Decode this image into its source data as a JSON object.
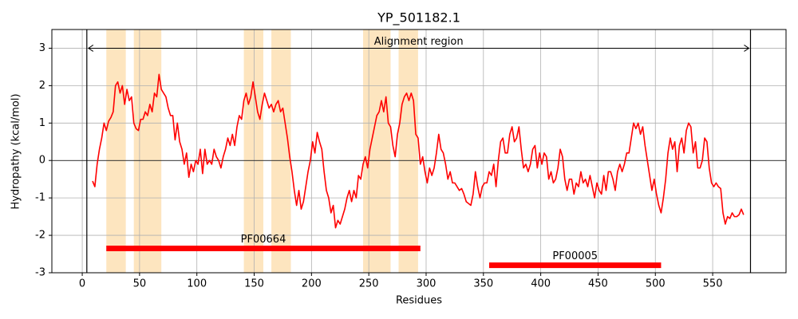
{
  "chart_data": {
    "type": "line",
    "title": "YP_501182.1",
    "x_label": "Residues",
    "y_label": "Hydropathy (kcal/mol)",
    "xlim": [
      -26.5,
      614
    ],
    "ylim": [
      -3,
      3.5
    ],
    "xticks": [
      0,
      50,
      100,
      150,
      200,
      250,
      300,
      350,
      400,
      450,
      500,
      550
    ],
    "yticks": [
      -3,
      -2,
      -1,
      0,
      1,
      2,
      3
    ],
    "grid": true,
    "hline": 0,
    "regions": {
      "color": "#fde5bf",
      "spans": [
        [
          21,
          38
        ],
        [
          45,
          69
        ],
        [
          141,
          158
        ],
        [
          165,
          182
        ],
        [
          245,
          269
        ],
        [
          276,
          293
        ]
      ]
    },
    "alignment": {
      "label": "Alignment region",
      "start": 4,
      "end": 583,
      "y": 3
    },
    "domains": {
      "color": "#ff0000",
      "items": [
        {
          "label": "PF00664",
          "start": 21,
          "end": 295,
          "y": -2.35
        },
        {
          "label": "PF00005",
          "start": 355,
          "end": 505,
          "y": -2.8
        }
      ]
    },
    "series": [
      {
        "color": "#ff0000",
        "x": [
          9,
          11,
          13,
          15,
          17,
          19,
          21,
          23,
          25,
          27,
          29,
          31,
          33,
          35,
          37,
          39,
          41,
          43,
          45,
          47,
          49,
          51,
          53,
          55,
          57,
          59,
          61,
          63,
          65,
          67,
          69,
          71,
          73,
          75,
          77,
          79,
          81,
          83,
          85,
          87,
          89,
          91,
          93,
          95,
          97,
          99,
          101,
          103,
          105,
          107,
          109,
          111,
          113,
          115,
          117,
          119,
          121,
          123,
          125,
          127,
          129,
          131,
          133,
          135,
          137,
          139,
          141,
          143,
          145,
          147,
          149,
          151,
          153,
          155,
          157,
          159,
          161,
          163,
          165,
          167,
          169,
          171,
          173,
          175,
          177,
          179,
          181,
          183,
          185,
          187,
          189,
          191,
          193,
          195,
          197,
          199,
          201,
          203,
          205,
          207,
          209,
          211,
          213,
          215,
          217,
          219,
          221,
          223,
          225,
          227,
          229,
          231,
          233,
          235,
          237,
          239,
          241,
          243,
          245,
          247,
          249,
          251,
          253,
          255,
          257,
          259,
          261,
          263,
          265,
          267,
          269,
          271,
          273,
          275,
          277,
          279,
          281,
          283,
          285,
          287,
          289,
          291,
          293,
          295,
          297,
          299,
          301,
          303,
          305,
          307,
          309,
          311,
          313,
          315,
          317,
          319,
          321,
          323,
          325,
          327,
          329,
          331,
          333,
          335,
          337,
          339,
          341,
          343,
          345,
          347,
          349,
          351,
          353,
          355,
          357,
          359,
          361,
          363,
          365,
          367,
          369,
          371,
          373,
          375,
          377,
          379,
          381,
          383,
          385,
          387,
          389,
          391,
          393,
          395,
          397,
          399,
          401,
          403,
          405,
          407,
          409,
          411,
          413,
          415,
          417,
          419,
          421,
          423,
          425,
          427,
          429,
          431,
          433,
          435,
          437,
          439,
          441,
          443,
          445,
          447,
          449,
          451,
          453,
          455,
          457,
          459,
          461,
          463,
          465,
          467,
          469,
          471,
          473,
          475,
          477,
          479,
          481,
          483,
          485,
          487,
          489,
          491,
          493,
          495,
          497,
          499,
          501,
          503,
          505,
          507,
          509,
          511,
          513,
          515,
          517,
          519,
          521,
          523,
          525,
          527,
          529,
          531,
          533,
          535,
          537,
          539,
          541,
          543,
          545,
          547,
          549,
          551,
          553,
          555,
          557,
          559,
          561,
          563,
          565,
          567,
          569,
          571,
          573,
          575,
          577
        ],
        "values": [
          -0.55,
          -0.7,
          -0.1,
          0.3,
          0.6,
          1.0,
          0.8,
          1.05,
          1.15,
          1.3,
          2.0,
          2.1,
          1.8,
          2.0,
          1.5,
          1.9,
          1.6,
          1.7,
          1.0,
          0.85,
          0.8,
          1.1,
          1.1,
          1.3,
          1.2,
          1.5,
          1.3,
          1.8,
          1.7,
          2.3,
          1.9,
          1.8,
          1.7,
          1.4,
          1.2,
          1.2,
          0.55,
          1.0,
          0.5,
          0.3,
          -0.1,
          0.2,
          -0.45,
          -0.1,
          -0.3,
          0.0,
          -0.1,
          0.3,
          -0.35,
          0.3,
          -0.1,
          0.0,
          -0.1,
          0.3,
          0.1,
          0.0,
          -0.2,
          0.1,
          0.3,
          0.6,
          0.4,
          0.7,
          0.4,
          0.9,
          1.2,
          1.1,
          1.6,
          1.8,
          1.5,
          1.7,
          2.1,
          1.7,
          1.3,
          1.1,
          1.5,
          1.8,
          1.6,
          1.4,
          1.5,
          1.3,
          1.5,
          1.6,
          1.3,
          1.4,
          1.0,
          0.6,
          0.1,
          -0.3,
          -0.8,
          -1.2,
          -0.8,
          -1.3,
          -1.1,
          -0.7,
          -0.3,
          0.0,
          0.5,
          0.2,
          0.75,
          0.5,
          0.3,
          -0.3,
          -0.8,
          -1.0,
          -1.4,
          -1.2,
          -1.8,
          -1.6,
          -1.7,
          -1.5,
          -1.3,
          -1.0,
          -0.8,
          -1.1,
          -0.8,
          -1.0,
          -0.4,
          -0.5,
          -0.1,
          0.1,
          -0.2,
          0.3,
          0.6,
          0.9,
          1.2,
          1.3,
          1.6,
          1.3,
          1.7,
          1.0,
          0.9,
          0.4,
          0.1,
          0.7,
          1.0,
          1.5,
          1.7,
          1.8,
          1.6,
          1.8,
          1.6,
          0.7,
          0.6,
          -0.1,
          0.1,
          -0.3,
          -0.6,
          -0.2,
          -0.4,
          -0.2,
          0.2,
          0.7,
          0.3,
          0.2,
          -0.1,
          -0.5,
          -0.3,
          -0.6,
          -0.6,
          -0.7,
          -0.8,
          -0.75,
          -0.9,
          -1.1,
          -1.15,
          -1.2,
          -0.9,
          -0.3,
          -0.7,
          -1.0,
          -0.7,
          -0.6,
          -0.6,
          -0.3,
          -0.4,
          -0.1,
          -0.7,
          0.0,
          0.5,
          0.6,
          0.2,
          0.2,
          0.7,
          0.9,
          0.5,
          0.6,
          0.9,
          0.3,
          -0.2,
          -0.1,
          -0.3,
          -0.1,
          0.3,
          0.4,
          -0.2,
          0.2,
          -0.1,
          0.2,
          0.1,
          -0.5,
          -0.3,
          -0.6,
          -0.5,
          -0.2,
          0.3,
          0.1,
          -0.5,
          -0.8,
          -0.5,
          -0.5,
          -0.9,
          -0.6,
          -0.7,
          -0.3,
          -0.6,
          -0.5,
          -0.7,
          -0.4,
          -0.7,
          -1.0,
          -0.6,
          -0.8,
          -0.9,
          -0.4,
          -0.8,
          -0.3,
          -0.3,
          -0.5,
          -0.8,
          -0.3,
          -0.1,
          -0.3,
          -0.1,
          0.2,
          0.2,
          0.6,
          1.0,
          0.85,
          1.0,
          0.7,
          0.9,
          0.4,
          0.0,
          -0.4,
          -0.8,
          -0.5,
          -0.9,
          -1.2,
          -1.4,
          -1.0,
          -0.5,
          0.2,
          0.6,
          0.3,
          0.5,
          -0.3,
          0.4,
          0.6,
          0.2,
          0.8,
          1.0,
          0.9,
          0.2,
          0.5,
          -0.2,
          -0.2,
          0.0,
          0.6,
          0.5,
          -0.2,
          -0.6,
          -0.7,
          -0.6,
          -0.7,
          -0.75,
          -1.4,
          -1.7,
          -1.5,
          -1.55,
          -1.4,
          -1.5,
          -1.5,
          -1.45,
          -1.3,
          -1.45
        ]
      }
    ]
  }
}
